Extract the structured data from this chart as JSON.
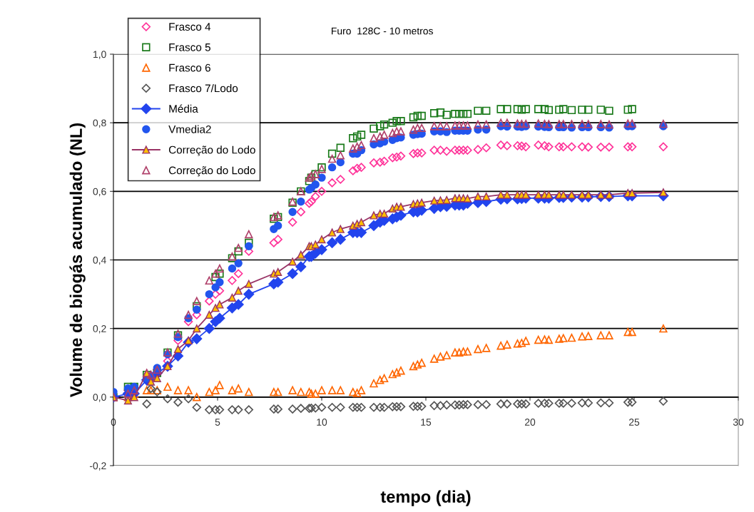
{
  "chart_data": {
    "type": "scatter",
    "title": "Furo  128C - 10 metros",
    "xlabel": "tempo (dia)",
    "ylabel": "Volume de biogás acumulado (NL)",
    "x": [
      0,
      0.7,
      1.0,
      1.6,
      1.8,
      2.1,
      2.6,
      3.1,
      3.6,
      4.0,
      4.6,
      4.9,
      5.1,
      5.7,
      6.0,
      6.5,
      7.7,
      7.9,
      8.6,
      9.0,
      9.4,
      9.5,
      9.7,
      10.0,
      10.5,
      10.9,
      11.5,
      11.7,
      11.9,
      12.5,
      12.8,
      13.0,
      13.4,
      13.6,
      13.8,
      14.4,
      14.6,
      14.8,
      15.4,
      15.7,
      16.0,
      16.4,
      16.6,
      16.8,
      17.0,
      17.5,
      17.9,
      18.6,
      18.9,
      19.4,
      19.6,
      19.8,
      20.4,
      20.7,
      20.9,
      21.4,
      21.6,
      22.0,
      22.5,
      22.8,
      23.4,
      23.8,
      24.7,
      24.9,
      26.4
    ],
    "series": [
      {
        "name": "Frasco 4",
        "marker": "diamond",
        "color": "#ff3399",
        "values": [
          null,
          0.02,
          null,
          null,
          null,
          0.08,
          0.105,
          0.165,
          0.22,
          0.24,
          0.28,
          0.3,
          0.31,
          0.34,
          0.36,
          0.425,
          0.45,
          0.46,
          0.51,
          0.54,
          0.565,
          0.57,
          0.585,
          0.6,
          0.625,
          0.635,
          0.66,
          0.667,
          0.67,
          0.683,
          0.685,
          0.688,
          0.698,
          0.7,
          0.703,
          0.71,
          0.712,
          0.712,
          0.72,
          0.72,
          0.717,
          0.72,
          0.72,
          0.72,
          0.72,
          0.722,
          0.727,
          0.735,
          0.733,
          0.733,
          0.732,
          0.73,
          0.735,
          0.733,
          0.73,
          0.73,
          0.73,
          0.73,
          0.73,
          0.729,
          0.729,
          0.729,
          0.73,
          0.73,
          0.73
        ]
      },
      {
        "name": "Frasco 5",
        "marker": "square",
        "color": "#1a7a1a",
        "values": [
          0,
          0.03,
          0.03,
          0.065,
          null,
          0.07,
          0.13,
          0.18,
          null,
          0.265,
          null,
          0.35,
          0.36,
          0.405,
          0.425,
          0.45,
          0.52,
          0.525,
          0.567,
          0.6,
          0.63,
          0.64,
          0.65,
          0.67,
          0.71,
          0.727,
          0.755,
          0.76,
          0.765,
          0.783,
          0.79,
          0.795,
          0.8,
          0.805,
          0.805,
          0.816,
          0.82,
          0.82,
          0.828,
          0.83,
          0.823,
          0.826,
          0.826,
          0.826,
          0.826,
          0.835,
          0.835,
          0.84,
          0.84,
          0.84,
          0.838,
          0.84,
          0.84,
          0.84,
          0.837,
          0.838,
          0.84,
          0.837,
          0.838,
          0.838,
          0.838,
          0.835,
          0.838,
          0.84,
          null
        ]
      },
      {
        "name": "Frasco 6",
        "marker": "triangle",
        "color": "#ff6600",
        "values": [
          0,
          0,
          0.01,
          0.02,
          0.02,
          0.02,
          0.03,
          0.02,
          0.02,
          0,
          0.015,
          0.02,
          0.035,
          0.02,
          0.025,
          0.015,
          0.015,
          0.015,
          0.02,
          0.015,
          0.015,
          0.01,
          0.01,
          0.02,
          0.02,
          0.02,
          0.015,
          0.012,
          0.02,
          0.04,
          0.05,
          0.055,
          0.067,
          0.072,
          0.077,
          0.09,
          0.095,
          0.1,
          0.112,
          0.118,
          0.122,
          0.13,
          0.13,
          0.133,
          0.133,
          0.14,
          0.143,
          0.15,
          0.153,
          0.156,
          0.158,
          0.164,
          0.167,
          0.168,
          0.167,
          0.17,
          0.172,
          0.173,
          0.177,
          0.178,
          0.18,
          0.18,
          0.19,
          0.19,
          0.2
        ]
      },
      {
        "name": "Frasco 7/Lodo",
        "marker": "diamond",
        "color": "#555555",
        "values": [
          null,
          0,
          null,
          -0.02,
          0.025,
          0.015,
          -0.005,
          -0.015,
          -0.005,
          -0.03,
          -0.037,
          -0.037,
          -0.037,
          -0.037,
          -0.037,
          -0.037,
          -0.035,
          -0.035,
          -0.035,
          -0.033,
          -0.033,
          -0.032,
          -0.032,
          -0.03,
          -0.03,
          -0.03,
          -0.03,
          -0.03,
          -0.03,
          -0.03,
          -0.03,
          -0.03,
          -0.028,
          -0.028,
          -0.028,
          -0.027,
          -0.027,
          -0.027,
          -0.025,
          -0.025,
          -0.023,
          -0.023,
          -0.023,
          -0.022,
          -0.022,
          -0.022,
          -0.022,
          -0.02,
          -0.02,
          -0.02,
          -0.02,
          -0.02,
          -0.018,
          -0.018,
          -0.018,
          -0.018,
          -0.018,
          -0.018,
          -0.017,
          -0.017,
          -0.017,
          -0.017,
          -0.015,
          -0.015,
          -0.012
        ]
      },
      {
        "name": "Média",
        "type": "line",
        "marker": "diamond",
        "color": "#2244ee",
        "values": [
          0,
          0.01,
          0.01,
          0.05,
          0.06,
          0.07,
          0.09,
          0.12,
          0.16,
          0.17,
          0.2,
          0.22,
          0.23,
          0.26,
          0.27,
          0.3,
          0.33,
          0.335,
          0.36,
          0.38,
          0.41,
          0.41,
          0.42,
          0.43,
          0.45,
          0.46,
          0.48,
          0.48,
          0.48,
          0.5,
          0.51,
          0.515,
          0.52,
          0.525,
          0.53,
          0.54,
          0.54,
          0.545,
          0.55,
          0.555,
          0.556,
          0.56,
          0.56,
          0.56,
          0.565,
          0.567,
          0.57,
          0.577,
          0.578,
          0.578,
          0.579,
          0.58,
          0.58,
          0.58,
          0.58,
          0.582,
          0.582,
          0.583,
          0.583,
          0.584,
          0.585,
          0.585,
          0.587,
          0.587,
          0.587
        ]
      },
      {
        "name": "Vmedia2",
        "marker": "circle",
        "color": "#2255ee",
        "values": [
          0.015,
          0.025,
          0.03,
          0.055,
          0.06,
          0.085,
          0.125,
          0.175,
          0.23,
          0.255,
          0.3,
          0.32,
          0.335,
          0.375,
          0.39,
          0.44,
          0.49,
          0.5,
          0.54,
          0.57,
          0.605,
          0.61,
          0.62,
          0.64,
          0.67,
          0.685,
          0.71,
          0.71,
          0.72,
          0.737,
          0.74,
          0.745,
          0.75,
          0.755,
          0.757,
          0.765,
          0.767,
          0.768,
          0.775,
          0.775,
          0.773,
          0.777,
          0.777,
          0.777,
          0.777,
          0.78,
          0.78,
          0.79,
          0.789,
          0.789,
          0.788,
          0.79,
          0.789,
          0.788,
          0.787,
          0.787,
          0.787,
          0.786,
          0.787,
          0.787,
          0.787,
          0.786,
          0.79,
          0.79,
          0.79
        ]
      },
      {
        "name": "Correção do Lodo",
        "type": "line",
        "marker": "triangle",
        "color": "#993366",
        "values": [
          0,
          -0.01,
          0,
          0.07,
          0.045,
          0.055,
          0.09,
          0.14,
          0.165,
          0.2,
          0.24,
          0.26,
          0.27,
          0.29,
          0.31,
          0.33,
          0.36,
          0.365,
          0.395,
          0.415,
          0.44,
          0.44,
          0.445,
          0.46,
          0.48,
          0.49,
          0.5,
          0.505,
          0.51,
          0.53,
          0.535,
          0.535,
          0.55,
          0.555,
          0.555,
          0.563,
          0.565,
          0.567,
          0.573,
          0.574,
          0.575,
          0.58,
          0.58,
          0.58,
          0.579,
          0.585,
          0.585,
          0.59,
          0.59,
          0.59,
          0.59,
          0.59,
          0.59,
          0.59,
          0.59,
          0.59,
          0.59,
          0.59,
          0.59,
          0.59,
          0.59,
          0.59,
          0.595,
          0.595,
          0.597
        ]
      },
      {
        "name": "Correção do Lodo",
        "marker": "triangle",
        "color": "#b0406a",
        "values": [
          0,
          0.01,
          0.02,
          0.07,
          0.065,
          0.08,
          0.13,
          0.185,
          0.24,
          0.28,
          0.34,
          0.36,
          0.375,
          0.41,
          0.435,
          0.475,
          0.525,
          0.53,
          0.57,
          0.6,
          0.64,
          0.645,
          0.65,
          0.665,
          0.695,
          0.705,
          0.725,
          0.73,
          0.735,
          0.755,
          0.76,
          0.765,
          0.77,
          0.775,
          0.775,
          0.78,
          0.785,
          0.785,
          0.79,
          0.79,
          0.79,
          0.792,
          0.792,
          0.792,
          0.792,
          0.795,
          0.795,
          0.8,
          0.8,
          0.798,
          0.797,
          0.797,
          0.798,
          0.797,
          0.796,
          0.796,
          0.796,
          0.796,
          0.796,
          0.796,
          0.796,
          0.795,
          0.798,
          0.798,
          0.797
        ]
      }
    ],
    "xlim": [
      0,
      30
    ],
    "xticks": [
      0,
      5,
      10,
      15,
      20,
      25,
      30
    ],
    "ylim": [
      -0.2,
      1.0
    ],
    "yticks": [
      {
        "value": -0.2,
        "label": "-0,2"
      },
      {
        "value": 0,
        "label": "0,0"
      },
      {
        "value": 0.2,
        "label": "0,2"
      },
      {
        "value": 0.4,
        "label": "0,4"
      },
      {
        "value": 0.6,
        "label": "0,6"
      },
      {
        "value": 0.8,
        "label": "0,8"
      },
      {
        "value": 1.0,
        "label": "1,0"
      }
    ],
    "grid": "y",
    "legend": "top left"
  }
}
